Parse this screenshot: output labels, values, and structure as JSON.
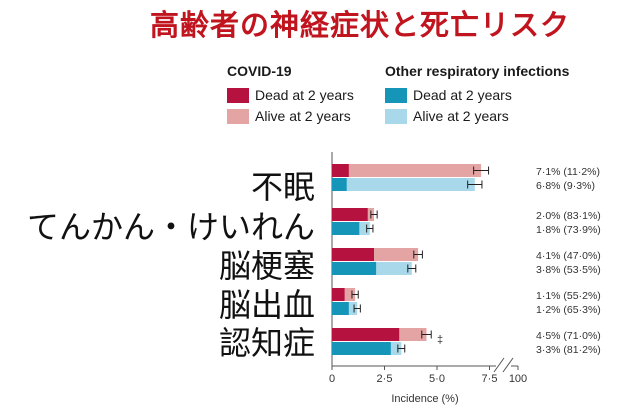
{
  "title": "高齢者の神経症状と死亡リスク",
  "legend": {
    "groups": [
      {
        "title": "COVID-19",
        "items": [
          {
            "label": "Dead at 2 years",
            "color": "#b5123f"
          },
          {
            "label": "Alive at 2 years",
            "color": "#e4a4a4"
          }
        ]
      },
      {
        "title": "Other respiratory infections",
        "items": [
          {
            "label": "Dead at 2 years",
            "color": "#1596b8"
          },
          {
            "label": "Alive at 2 years",
            "color": "#a8d8ea"
          }
        ]
      }
    ]
  },
  "chart_data": {
    "type": "bar",
    "orientation": "horizontal",
    "stacked": true,
    "title": "",
    "xlabel": "Incidence (%)",
    "ylabel": "",
    "xlim": [
      0,
      100
    ],
    "axis_break": [
      7.5,
      100
    ],
    "x_ticks": [
      "0",
      "2·5",
      "5·0",
      "7·5",
      "100"
    ],
    "categories": [
      "不眠",
      "てんかん・けいれん",
      "脳梗塞",
      "脳出血",
      "認知症"
    ],
    "series": [
      {
        "name": "COVID-19",
        "totals": [
          7.1,
          2.0,
          4.1,
          1.1,
          4.5
        ],
        "dead": [
          0.8,
          1.7,
          2.0,
          0.6,
          3.2
        ],
        "alive_pct": [
          11.2,
          83.1,
          47.0,
          55.2,
          71.0
        ],
        "labels": [
          "7·1% (11·2%)",
          "2·0% (83·1%)",
          "4·1% (47·0%)",
          "1·1% (55·2%)",
          "4·5% (71·0%)"
        ],
        "colors": {
          "dead": "#b5123f",
          "alive": "#e4a4a4"
        }
      },
      {
        "name": "Other respiratory infections",
        "totals": [
          6.8,
          1.8,
          3.8,
          1.2,
          3.3
        ],
        "dead": [
          0.7,
          1.3,
          2.1,
          0.8,
          2.8
        ],
        "alive_pct": [
          9.3,
          73.9,
          53.5,
          65.3,
          81.2
        ],
        "labels": [
          "6·8% (9·3%)",
          "1·8% (73·9%)",
          "3·8% (53·5%)",
          "1·2% (65·3%)",
          "3·3% (81·2%)"
        ],
        "colors": {
          "dead": "#1596b8",
          "alive": "#a8d8ea"
        }
      }
    ],
    "annotations": [
      {
        "category": "認知症",
        "text": "‡"
      }
    ],
    "grid": false
  }
}
